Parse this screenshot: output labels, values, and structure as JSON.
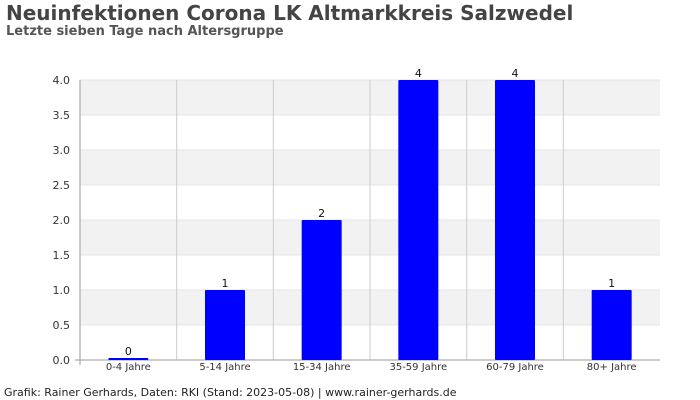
{
  "chart_data": {
    "type": "bar",
    "title": "Neuinfektionen Corona LK Altmarkkreis Salzwedel",
    "subtitle": "Letzte sieben Tage nach Altersgruppe",
    "categories": [
      "0-4 Jahre",
      "5-14 Jahre",
      "15-34 Jahre",
      "35-59 Jahre",
      "60-79 Jahre",
      "80+ Jahre"
    ],
    "values": [
      0,
      1,
      2,
      4,
      4,
      1
    ],
    "data_labels": [
      "0",
      "1",
      "2",
      "4",
      "4",
      "1"
    ],
    "ylim": [
      0,
      4
    ],
    "yticks": [
      "0.0",
      "0.5",
      "1.0",
      "1.5",
      "2.0",
      "2.5",
      "3.0",
      "3.5",
      "4.0"
    ],
    "bar_color": "#0000ff",
    "band_color": "#f2f2f2",
    "grid": true,
    "legend": "none"
  },
  "footer": "Grafik: Rainer Gerhards, Daten: RKI (Stand: 2023-05-08) | www.rainer-gerhards.de"
}
